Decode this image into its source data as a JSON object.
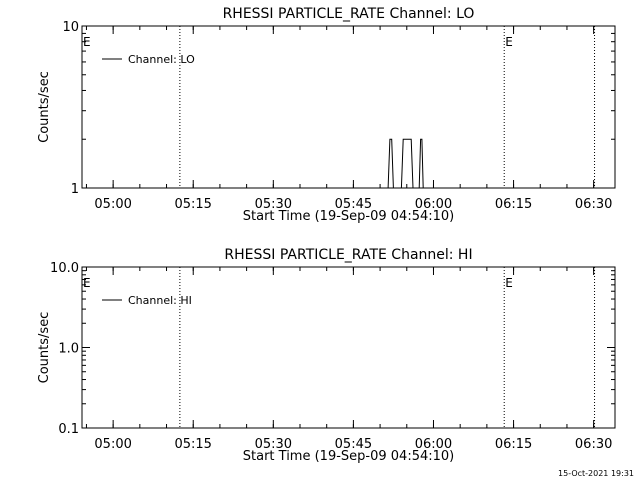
{
  "footer": {
    "timestamp": "15-Oct-2021 19:31"
  },
  "chart_data": [
    {
      "type": "line",
      "title": "RHESSI PARTICLE_RATE Channel: LO",
      "xlabel": "Start Time (19-Sep-09 04:54:10)",
      "ylabel": "Counts/sec",
      "yscale": "log",
      "ylim": [
        1,
        10
      ],
      "y_ticks": [
        1,
        10
      ],
      "y_tick_labels": [
        "1",
        "10"
      ],
      "xlim": [
        "04:54:10",
        "06:34:00"
      ],
      "x_ticks": [
        "05:00",
        "05:15",
        "05:30",
        "05:45",
        "06:00",
        "06:15",
        "06:30"
      ],
      "grid": false,
      "legend": {
        "position": "top-left",
        "entries": [
          "Channel: LO"
        ]
      },
      "vertical_markers": [
        "05:12:30",
        "06:13:15",
        "06:30:10"
      ],
      "annotations": [
        {
          "text": "E",
          "x": "04:54:10"
        },
        {
          "text": "E",
          "x": "06:13:15"
        }
      ],
      "series": [
        {
          "name": "Channel: LO",
          "x": [
            "05:51:30",
            "05:51:50",
            "05:52:10",
            "05:52:30",
            "05:54:00",
            "05:54:20",
            "05:55:50",
            "05:56:10",
            "05:57:20",
            "05:57:35",
            "05:57:50",
            "05:58:05"
          ],
          "y": [
            1,
            2,
            2,
            1,
            1,
            2,
            2,
            1,
            1,
            2,
            2,
            1
          ]
        }
      ]
    },
    {
      "type": "line",
      "title": "RHESSI PARTICLE_RATE Channel: HI",
      "xlabel": "Start Time (19-Sep-09 04:54:10)",
      "ylabel": "Counts/sec",
      "yscale": "log",
      "ylim": [
        0.1,
        10
      ],
      "y_ticks": [
        0.1,
        1,
        10
      ],
      "y_tick_labels": [
        "0.1",
        "1.0",
        "10.0"
      ],
      "xlim": [
        "04:54:10",
        "06:34:00"
      ],
      "x_ticks": [
        "05:00",
        "05:15",
        "05:30",
        "05:45",
        "06:00",
        "06:15",
        "06:30"
      ],
      "grid": false,
      "legend": {
        "position": "top-left",
        "entries": [
          "Channel: HI"
        ]
      },
      "vertical_markers": [
        "05:12:30",
        "06:13:15",
        "06:30:10"
      ],
      "annotations": [
        {
          "text": "E",
          "x": "04:54:10"
        },
        {
          "text": "E",
          "x": "06:13:15"
        }
      ],
      "series": [
        {
          "name": "Channel: HI",
          "x": [],
          "y": []
        }
      ]
    }
  ]
}
